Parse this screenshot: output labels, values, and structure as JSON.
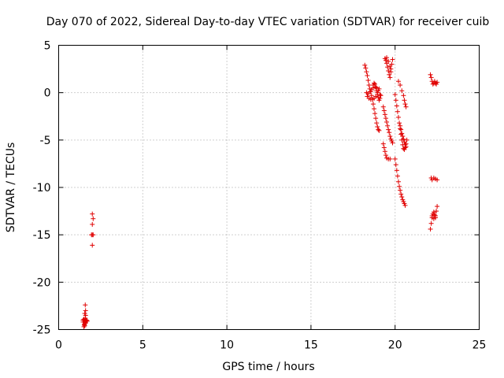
{
  "chart_data": {
    "type": "scatter",
    "title": "Day 070 of 2022, Sidereal Day-to-day VTEC variation (SDTVAR) for receiver cuib",
    "xlabel": "GPS time / hours",
    "ylabel": "SDTVAR / TECUs",
    "xlim": [
      0,
      25
    ],
    "ylim": [
      -25,
      5
    ],
    "x_ticks": [
      0,
      5,
      10,
      15,
      20,
      25
    ],
    "y_ticks": [
      5,
      0,
      -5,
      -10,
      -15,
      -20,
      -25
    ],
    "x_tick_labels": [
      "0",
      "5",
      "10",
      "15",
      "20",
      "25"
    ],
    "y_tick_labels": [
      "5",
      "0",
      "-5",
      "-10",
      "-15",
      "-20",
      "-25"
    ],
    "grid": true,
    "legend": "none",
    "marker": "plus",
    "marker_color": "#e00000",
    "series": [
      {
        "name": "SDTVAR",
        "x": [
          1.45,
          1.5,
          1.52,
          1.55,
          1.58,
          1.6,
          1.62,
          1.5,
          1.55,
          1.6,
          1.65,
          1.45,
          1.5,
          1.55,
          1.6,
          1.55,
          1.6,
          1.58,
          1.65,
          1.7,
          2.0,
          2.05,
          2.0,
          1.95,
          2.0,
          2.05,
          2.0,
          18.2,
          18.25,
          18.3,
          18.35,
          18.4,
          18.45,
          18.5,
          18.55,
          18.6,
          18.65,
          18.7,
          18.75,
          18.8,
          18.85,
          18.9,
          18.95,
          19.0,
          19.05,
          18.3,
          18.4,
          18.5,
          18.6,
          18.7,
          18.8,
          18.9,
          19.0,
          19.1,
          18.35,
          18.45,
          18.55,
          18.65,
          18.75,
          18.85,
          18.95,
          19.05,
          18.7,
          18.75,
          18.8,
          18.85,
          18.9,
          18.95,
          19.0,
          19.05,
          19.1,
          19.15,
          19.4,
          19.45,
          19.5,
          19.55,
          19.6,
          19.65,
          19.7,
          19.75,
          19.8,
          19.85,
          19.5,
          19.6,
          19.7,
          19.75,
          19.3,
          19.35,
          19.4,
          19.45,
          19.5,
          19.55,
          19.6,
          19.65,
          19.7,
          19.75,
          19.8,
          19.85,
          19.3,
          19.35,
          19.4,
          19.45,
          19.5,
          19.6,
          19.7,
          20.0,
          20.05,
          20.1,
          20.15,
          20.2,
          20.25,
          20.3,
          20.35,
          20.4,
          20.45,
          20.5,
          20.55,
          20.6,
          20.65,
          20.7,
          20.2,
          20.3,
          20.4,
          20.5,
          20.55,
          20.6,
          20.65,
          20.3,
          20.35,
          20.4,
          20.45,
          20.5,
          20.55,
          20.6,
          20.65,
          20.0,
          20.05,
          20.1,
          20.15,
          20.2,
          20.25,
          20.3,
          20.35,
          20.4,
          20.45,
          20.5,
          20.55,
          20.6,
          22.1,
          22.15,
          22.2,
          22.25,
          22.3,
          22.35,
          22.4,
          22.45,
          22.5,
          22.15,
          22.2,
          22.3,
          22.4,
          22.5,
          22.1,
          22.15,
          22.2,
          22.25,
          22.3,
          22.35,
          22.4,
          22.45,
          22.5,
          22.2,
          22.3,
          22.4
        ],
        "y": [
          -24.2,
          -24.0,
          -24.5,
          -24.1,
          -23.8,
          -24.3,
          -24.0,
          -24.7,
          -24.4,
          -23.5,
          -24.1,
          -24.0,
          -23.9,
          -24.6,
          -24.2,
          -23.3,
          -23.0,
          -22.4,
          -24.0,
          -24.1,
          -12.8,
          -13.3,
          -13.9,
          -15.0,
          -15.0,
          -15.0,
          -16.1,
          2.9,
          2.6,
          2.2,
          1.8,
          1.3,
          0.8,
          0.4,
          0.1,
          -0.3,
          -0.7,
          -1.2,
          -1.7,
          -2.2,
          -2.7,
          -3.2,
          -3.6,
          -3.9,
          -4.0,
          0.0,
          -0.1,
          0.1,
          0.3,
          0.5,
          0.6,
          0.5,
          0.2,
          -0.2,
          -0.4,
          -0.6,
          -0.7,
          -0.7,
          -0.6,
          -0.4,
          0.0,
          0.4,
          0.8,
          1.0,
          0.9,
          0.6,
          0.2,
          -0.2,
          -0.5,
          -0.8,
          -0.6,
          -0.3,
          3.6,
          3.4,
          3.1,
          2.7,
          2.3,
          1.9,
          1.6,
          2.5,
          3.0,
          3.5,
          3.7,
          3.3,
          2.8,
          2.2,
          -1.5,
          -1.9,
          -2.3,
          -2.7,
          -3.1,
          -3.5,
          -3.9,
          -4.2,
          -4.6,
          -4.9,
          -5.1,
          -5.3,
          -5.4,
          -5.8,
          -6.2,
          -6.6,
          -6.9,
          -7.0,
          -7.0,
          -0.2,
          -0.8,
          -1.4,
          -2.0,
          -2.6,
          -3.2,
          -3.8,
          -4.4,
          -5.0,
          -5.5,
          -5.9,
          -6.0,
          -5.8,
          -5.4,
          -5.0,
          1.2,
          0.8,
          0.2,
          -0.3,
          -0.8,
          -1.2,
          -1.5,
          -3.5,
          -3.9,
          -4.3,
          -4.6,
          -4.9,
          -5.2,
          -5.5,
          -5.7,
          -7.0,
          -7.6,
          -8.2,
          -8.8,
          -9.4,
          -9.9,
          -10.3,
          -10.7,
          -11.0,
          -11.3,
          -11.5,
          -11.7,
          -11.9,
          1.9,
          1.6,
          1.2,
          0.9,
          1.0,
          1.2,
          1.0,
          0.9,
          1.1,
          -9.0,
          -9.2,
          -9.0,
          -9.1,
          -9.2,
          -14.4,
          -13.8,
          -13.2,
          -12.8,
          -12.6,
          -12.9,
          -13.2,
          -12.5,
          -12.0,
          -13.0,
          -13.3,
          -13.0
        ]
      }
    ]
  }
}
